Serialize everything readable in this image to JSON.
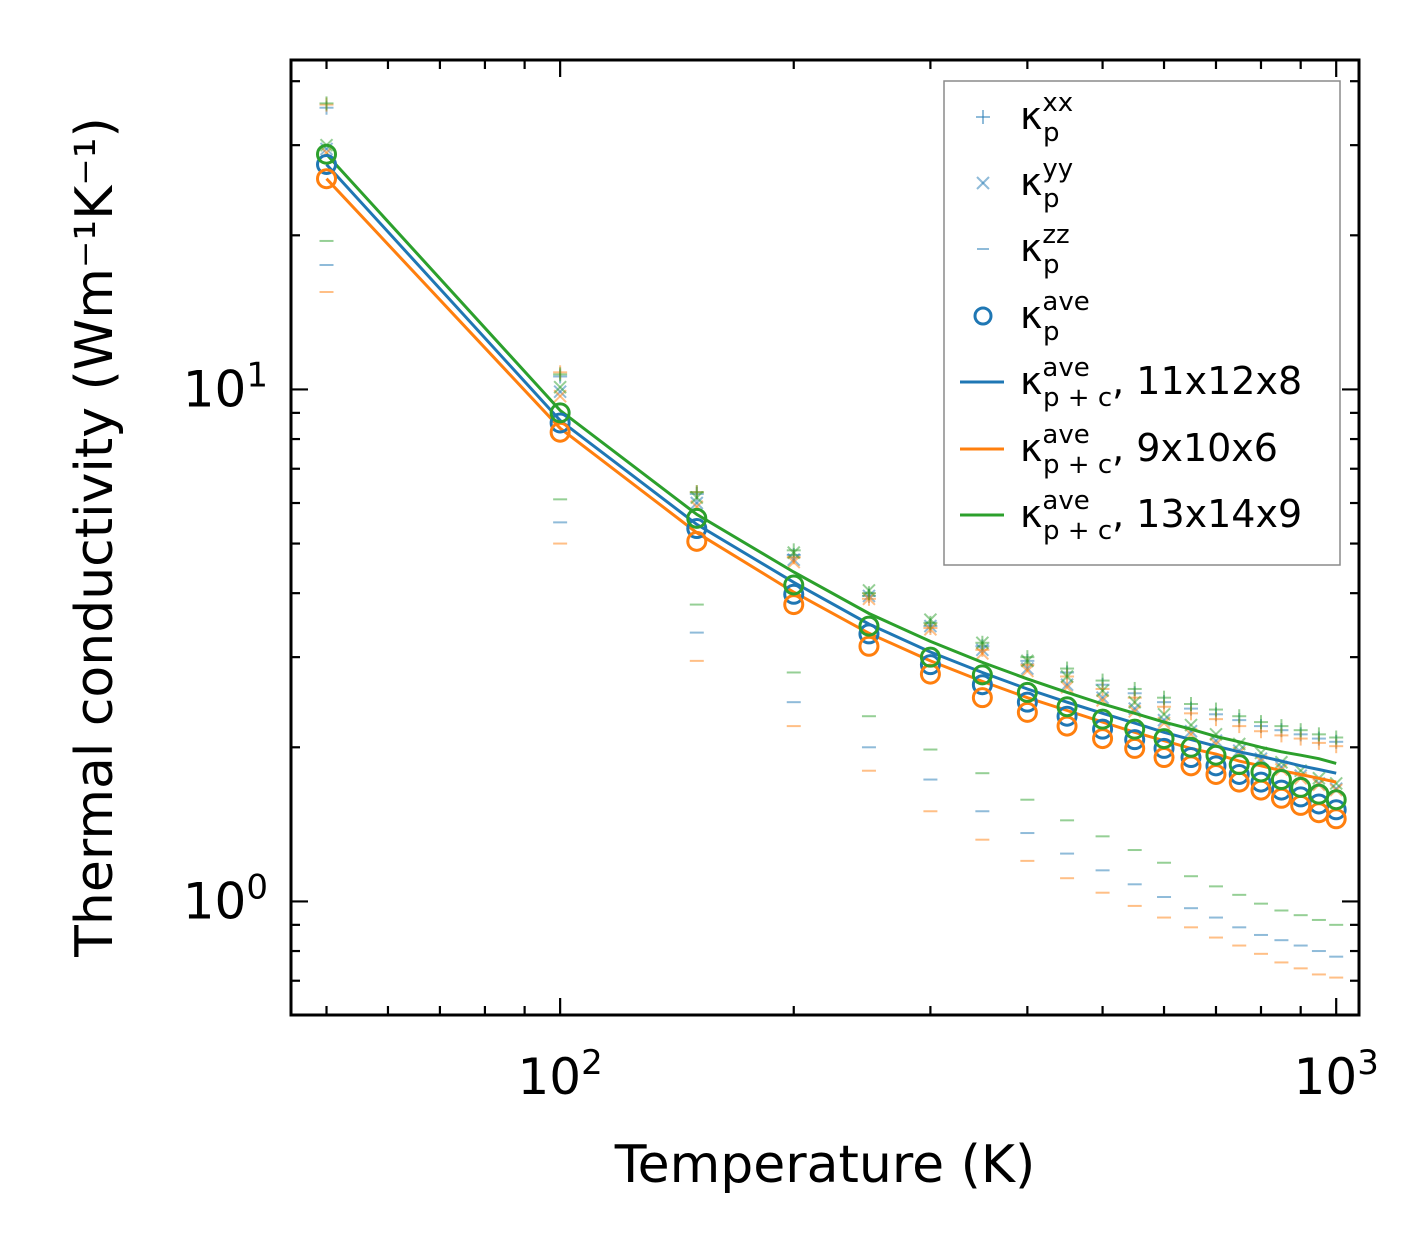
{
  "chart_data": {
    "type": "scatter",
    "xscale": "log",
    "yscale": "log",
    "xlim": [
      45,
      1070
    ],
    "ylim": [
      0.6,
      44
    ],
    "xlabel": "Temperature (K)",
    "ylabel": "Thermal conductivity (Wm⁻¹K⁻¹)",
    "x_ticks": [
      {
        "value": 100,
        "base": "10",
        "exp": "2"
      },
      {
        "value": 1000,
        "base": "10",
        "exp": "3"
      }
    ],
    "y_ticks": [
      {
        "value": 1,
        "base": "10",
        "exp": "0"
      },
      {
        "value": 10,
        "base": "10",
        "exp": "1"
      }
    ],
    "temperatures": [
      50,
      100,
      150,
      200,
      250,
      300,
      350,
      400,
      450,
      500,
      550,
      600,
      650,
      700,
      750,
      800,
      850,
      900,
      950,
      1000
    ],
    "colors": {
      "blue": "#1f77b4",
      "orange": "#ff7f0e",
      "green": "#2ca02c"
    },
    "series": [
      {
        "name": "11x12x8",
        "color": "#1f77b4",
        "kxx": [
          35.5,
          10.6,
          6.25,
          4.75,
          3.95,
          3.45,
          3.15,
          2.95,
          2.8,
          2.65,
          2.55,
          2.45,
          2.38,
          2.32,
          2.26,
          2.2,
          2.16,
          2.12,
          2.08,
          2.05
        ],
        "kyy": [
          29.5,
          9.9,
          6.0,
          4.65,
          3.95,
          3.45,
          3.1,
          2.85,
          2.65,
          2.5,
          2.38,
          2.26,
          2.15,
          2.06,
          1.97,
          1.9,
          1.83,
          1.76,
          1.7,
          1.66
        ],
        "kzz": [
          17.5,
          5.5,
          3.35,
          2.45,
          2.0,
          1.73,
          1.5,
          1.36,
          1.24,
          1.15,
          1.08,
          1.02,
          0.97,
          0.93,
          0.89,
          0.86,
          0.84,
          0.82,
          0.8,
          0.78
        ],
        "kave": [
          27.5,
          8.6,
          5.35,
          3.98,
          3.33,
          2.9,
          2.65,
          2.45,
          2.3,
          2.17,
          2.07,
          1.99,
          1.91,
          1.84,
          1.77,
          1.71,
          1.65,
          1.6,
          1.55,
          1.51
        ],
        "line": [
          27.5,
          8.7,
          5.45,
          4.2,
          3.48,
          3.07,
          2.8,
          2.6,
          2.45,
          2.33,
          2.23,
          2.14,
          2.07,
          2.01,
          1.96,
          1.92,
          1.88,
          1.84,
          1.81,
          1.78
        ]
      },
      {
        "name": "9x10x6",
        "color": "#ff7f0e",
        "kxx": [
          36.0,
          10.8,
          6.3,
          4.7,
          3.9,
          3.42,
          3.1,
          2.9,
          2.75,
          2.6,
          2.5,
          2.4,
          2.33,
          2.27,
          2.2,
          2.15,
          2.11,
          2.08,
          2.04,
          2.01
        ],
        "kyy": [
          29.0,
          9.7,
          5.9,
          4.6,
          3.9,
          3.4,
          3.05,
          2.82,
          2.62,
          2.47,
          2.35,
          2.23,
          2.12,
          2.03,
          1.95,
          1.88,
          1.81,
          1.74,
          1.69,
          1.65
        ],
        "kzz": [
          15.5,
          5.0,
          2.95,
          2.2,
          1.8,
          1.5,
          1.32,
          1.2,
          1.11,
          1.04,
          0.98,
          0.93,
          0.89,
          0.85,
          0.82,
          0.79,
          0.76,
          0.74,
          0.72,
          0.71
        ],
        "kave": [
          25.8,
          8.25,
          5.05,
          3.8,
          3.15,
          2.78,
          2.5,
          2.34,
          2.2,
          2.08,
          1.99,
          1.91,
          1.84,
          1.77,
          1.71,
          1.65,
          1.59,
          1.54,
          1.49,
          1.45
        ],
        "line": [
          25.8,
          8.4,
          5.25,
          4.02,
          3.34,
          2.95,
          2.69,
          2.5,
          2.36,
          2.24,
          2.14,
          2.06,
          1.99,
          1.94,
          1.88,
          1.84,
          1.8,
          1.77,
          1.74,
          1.71
        ]
      },
      {
        "name": "13x14x9",
        "color": "#2ca02c",
        "kxx": [
          36.2,
          10.7,
          6.3,
          4.85,
          4.0,
          3.5,
          3.2,
          3.0,
          2.85,
          2.7,
          2.6,
          2.5,
          2.43,
          2.37,
          2.3,
          2.24,
          2.2,
          2.16,
          2.12,
          2.09
        ],
        "kyy": [
          30.0,
          10.1,
          6.15,
          4.8,
          4.05,
          3.55,
          3.2,
          2.95,
          2.75,
          2.58,
          2.45,
          2.32,
          2.21,
          2.12,
          2.03,
          1.95,
          1.87,
          1.8,
          1.74,
          1.7
        ],
        "kzz": [
          19.5,
          6.1,
          3.8,
          2.8,
          2.3,
          1.98,
          1.78,
          1.58,
          1.44,
          1.34,
          1.26,
          1.19,
          1.12,
          1.07,
          1.03,
          0.99,
          0.96,
          0.94,
          0.92,
          0.9
        ],
        "kave": [
          28.8,
          9.0,
          5.6,
          4.15,
          3.45,
          3.0,
          2.77,
          2.56,
          2.4,
          2.27,
          2.17,
          2.08,
          2.0,
          1.93,
          1.85,
          1.79,
          1.73,
          1.67,
          1.62,
          1.58
        ],
        "line": [
          28.8,
          9.1,
          5.7,
          4.4,
          3.65,
          3.22,
          2.93,
          2.72,
          2.56,
          2.43,
          2.33,
          2.24,
          2.17,
          2.1,
          2.05,
          2.0,
          1.96,
          1.93,
          1.9,
          1.86
        ]
      }
    ],
    "legend": {
      "placement": "top-right",
      "entries": [
        {
          "symbol": "κ",
          "sub": "p",
          "sup": "xx",
          "suffix": "",
          "marker": "plus"
        },
        {
          "symbol": "κ",
          "sub": "p",
          "sup": "yy",
          "suffix": "",
          "marker": "x"
        },
        {
          "symbol": "κ",
          "sub": "p",
          "sup": "zz",
          "suffix": "",
          "marker": "dash"
        },
        {
          "symbol": "κ",
          "sub": "p",
          "sup": "ave",
          "suffix": "",
          "marker": "circle"
        },
        {
          "symbol": "κ",
          "sub": "p + c",
          "sup": "ave",
          "suffix": ", 11x12x8",
          "marker": "line-blue"
        },
        {
          "symbol": "κ",
          "sub": "p + c",
          "sup": "ave",
          "suffix": ", 9x10x6",
          "marker": "line-orange"
        },
        {
          "symbol": "κ",
          "sub": "p + c",
          "sup": "ave",
          "suffix": ", 13x14x9",
          "marker": "line-green"
        }
      ]
    }
  }
}
